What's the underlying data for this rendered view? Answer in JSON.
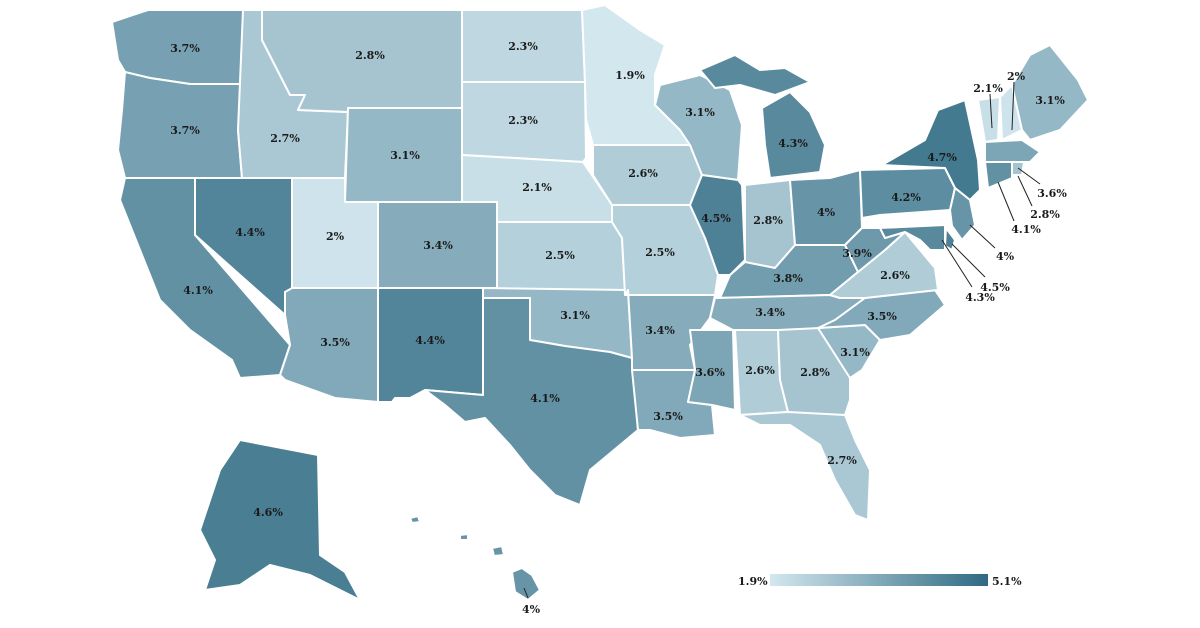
{
  "color_scale": {
    "min_label": "1.9%",
    "max_label": "5.1%",
    "min": 1.9,
    "max": 5.1,
    "low_color": "#d3e7ef",
    "high_color": "#2f6a82"
  },
  "states": [
    {
      "code": "WA",
      "label": "3.7%",
      "value": 3.7
    },
    {
      "code": "OR",
      "label": "3.7%",
      "value": 3.7
    },
    {
      "code": "CA",
      "label": "4.1%",
      "value": 4.1
    },
    {
      "code": "ID",
      "label": "2.7%",
      "value": 2.7
    },
    {
      "code": "NV",
      "label": "4.4%",
      "value": 4.4
    },
    {
      "code": "MT",
      "label": "2.8%",
      "value": 2.8
    },
    {
      "code": "WY",
      "label": "3.1%",
      "value": 3.1
    },
    {
      "code": "UT",
      "label": "2%",
      "value": 2.0
    },
    {
      "code": "AZ",
      "label": "3.5%",
      "value": 3.5
    },
    {
      "code": "CO",
      "label": "3.4%",
      "value": 3.4
    },
    {
      "code": "NM",
      "label": "4.4%",
      "value": 4.4
    },
    {
      "code": "ND",
      "label": "2.3%",
      "value": 2.3
    },
    {
      "code": "SD",
      "label": "2.3%",
      "value": 2.3
    },
    {
      "code": "NE",
      "label": "2.1%",
      "value": 2.1
    },
    {
      "code": "KS",
      "label": "2.5%",
      "value": 2.5
    },
    {
      "code": "OK",
      "label": "3.1%",
      "value": 3.1
    },
    {
      "code": "TX",
      "label": "4.1%",
      "value": 4.1
    },
    {
      "code": "MN",
      "label": "1.9%",
      "value": 1.9
    },
    {
      "code": "IA",
      "label": "2.6%",
      "value": 2.6
    },
    {
      "code": "MO",
      "label": "2.5%",
      "value": 2.5
    },
    {
      "code": "AR",
      "label": "3.4%",
      "value": 3.4
    },
    {
      "code": "LA",
      "label": "3.5%",
      "value": 3.5
    },
    {
      "code": "WI",
      "label": "3.1%",
      "value": 3.1
    },
    {
      "code": "IL",
      "label": "4.5%",
      "value": 4.5
    },
    {
      "code": "MI",
      "label": "4.3%",
      "value": 4.3
    },
    {
      "code": "IN",
      "label": "2.8%",
      "value": 2.8
    },
    {
      "code": "OH",
      "label": "4%",
      "value": 4.0
    },
    {
      "code": "KY",
      "label": "3.8%",
      "value": 3.8
    },
    {
      "code": "TN",
      "label": "3.4%",
      "value": 3.4
    },
    {
      "code": "MS",
      "label": "3.6%",
      "value": 3.6
    },
    {
      "code": "AL",
      "label": "2.6%",
      "value": 2.6
    },
    {
      "code": "GA",
      "label": "2.8%",
      "value": 2.8
    },
    {
      "code": "FL",
      "label": "2.7%",
      "value": 2.7
    },
    {
      "code": "SC",
      "label": "3.1%",
      "value": 3.1
    },
    {
      "code": "NC",
      "label": "3.5%",
      "value": 3.5
    },
    {
      "code": "VA",
      "label": "2.6%",
      "value": 2.6
    },
    {
      "code": "WV",
      "label": "3.9%",
      "value": 3.9
    },
    {
      "code": "PA",
      "label": "4.2%",
      "value": 4.2
    },
    {
      "code": "NY",
      "label": "4.7%",
      "value": 4.7
    },
    {
      "code": "VT",
      "label": "2.1%",
      "value": 2.1
    },
    {
      "code": "NH",
      "label": "2%",
      "value": 2.0
    },
    {
      "code": "ME",
      "label": "3.1%",
      "value": 3.1
    },
    {
      "code": "MA",
      "label": "3.6%",
      "value": 3.6
    },
    {
      "code": "RI",
      "label": "2.8%",
      "value": 2.8
    },
    {
      "code": "CT",
      "label": "4.1%",
      "value": 4.1
    },
    {
      "code": "NJ",
      "label": "4%",
      "value": 4.0
    },
    {
      "code": "DE",
      "label": "4.5%",
      "value": 4.5
    },
    {
      "code": "MD",
      "label": "4.3%",
      "value": 4.3
    },
    {
      "code": "AK",
      "label": "4.6%",
      "value": 4.6
    },
    {
      "code": "HI",
      "label": "4%",
      "value": 4.0
    }
  ]
}
